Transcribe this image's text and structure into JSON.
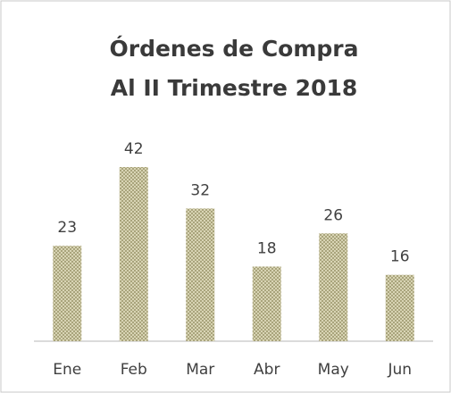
{
  "chart_data": {
    "type": "bar",
    "title": [
      "Órdenes de Compra",
      "Al II Trimestre 2018"
    ],
    "categories": [
      "Ene",
      "Feb",
      "Mar",
      "Abr",
      "May",
      "Jun"
    ],
    "values": [
      23,
      42,
      32,
      18,
      26,
      16
    ],
    "color": "#a9a47c"
  }
}
